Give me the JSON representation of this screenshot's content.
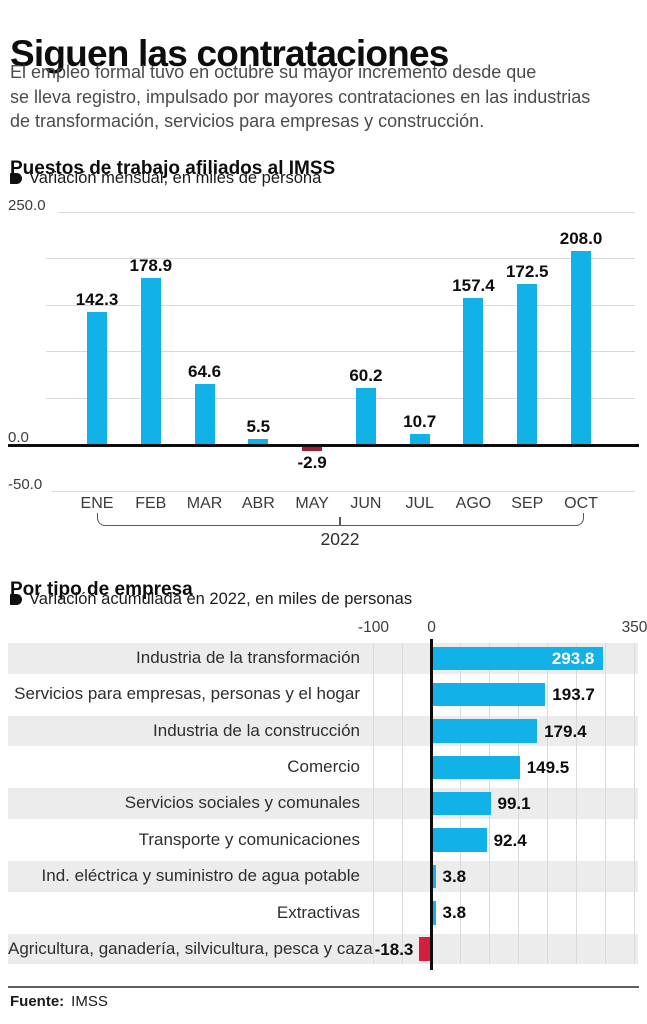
{
  "header": {
    "title": "Siguen las contrataciones",
    "description_lines": [
      "El empleo formal tuvo en octubre su mayor incremento desde que",
      "se lleva registro, impulsado por mayores contrataciones en las industrias",
      "de transformación, servicios para empresas y construcción."
    ]
  },
  "colors": {
    "accent_blue": "#12b1e8",
    "negative_red_dark": "#9e1f33",
    "negative_red": "#d21f3c",
    "zebra_gray": "#ececec",
    "grid_gray": "#d9d9d9",
    "axis_black": "#0d0d0d"
  },
  "chart_data": [
    {
      "type": "bar",
      "title": "Puestos de trabajo afiliados al IMSS",
      "legend": "Variación mensual, en miles de persona",
      "categories": [
        "ENE",
        "FEB",
        "MAR",
        "ABR",
        "MAY",
        "JUN",
        "JUL",
        "AGO",
        "SEP",
        "OCT"
      ],
      "values": [
        142.3,
        178.9,
        64.6,
        5.5,
        -2.9,
        60.2,
        10.7,
        157.4,
        172.5,
        208.0
      ],
      "value_labels": [
        "142.3",
        "178.9",
        "64.6",
        "5.5",
        "-2.9",
        "60.2",
        "10.7",
        "157.4",
        "172.5",
        "208.0"
      ],
      "group_label": "2022",
      "ylim": [
        -50,
        250
      ],
      "yticks": [
        {
          "label": "250.0",
          "value": 250
        },
        {
          "label": "0.0",
          "value": 0
        },
        {
          "label": "-50.0",
          "value": -50
        }
      ],
      "gridline_values": [
        250,
        200,
        150,
        100,
        50,
        -50
      ],
      "grid": true,
      "legend_position": "top"
    },
    {
      "type": "bar-horizontal",
      "title": "Por tipo de empresa",
      "legend": "Variación acumulada en 2022, en miles de personas",
      "categories": [
        "Industria de la transformación",
        "Servicios para empresas, personas y el hogar",
        "Industria de la construcción",
        "Comercio",
        "Servicios sociales y comunales",
        "Transporte y comunicaciones",
        "Ind. eléctrica y suministro de agua potable",
        "Extractivas",
        "Agricultura, ganadería, silvicultura, pesca y caza"
      ],
      "values": [
        293.8,
        193.7,
        179.4,
        149.5,
        99.1,
        92.4,
        3.8,
        3.8,
        -18.3
      ],
      "value_labels": [
        "293.8",
        "193.7",
        "179.4",
        "149.5",
        "99.1",
        "92.4",
        "3.8",
        "3.8",
        "-18.3"
      ],
      "xlim": [
        -100,
        350
      ],
      "xticks": [
        {
          "label": "-100",
          "value": -100
        },
        {
          "label": "0",
          "value": 0
        },
        {
          "label": "350",
          "value": 350
        }
      ],
      "gridline_values": [
        -100,
        -50,
        50,
        100,
        150,
        200,
        250,
        300,
        350
      ],
      "grid": true,
      "value_label_inside_first_row": true
    }
  ],
  "footer": {
    "source_label": "Fuente:",
    "source_value": "IMSS"
  }
}
